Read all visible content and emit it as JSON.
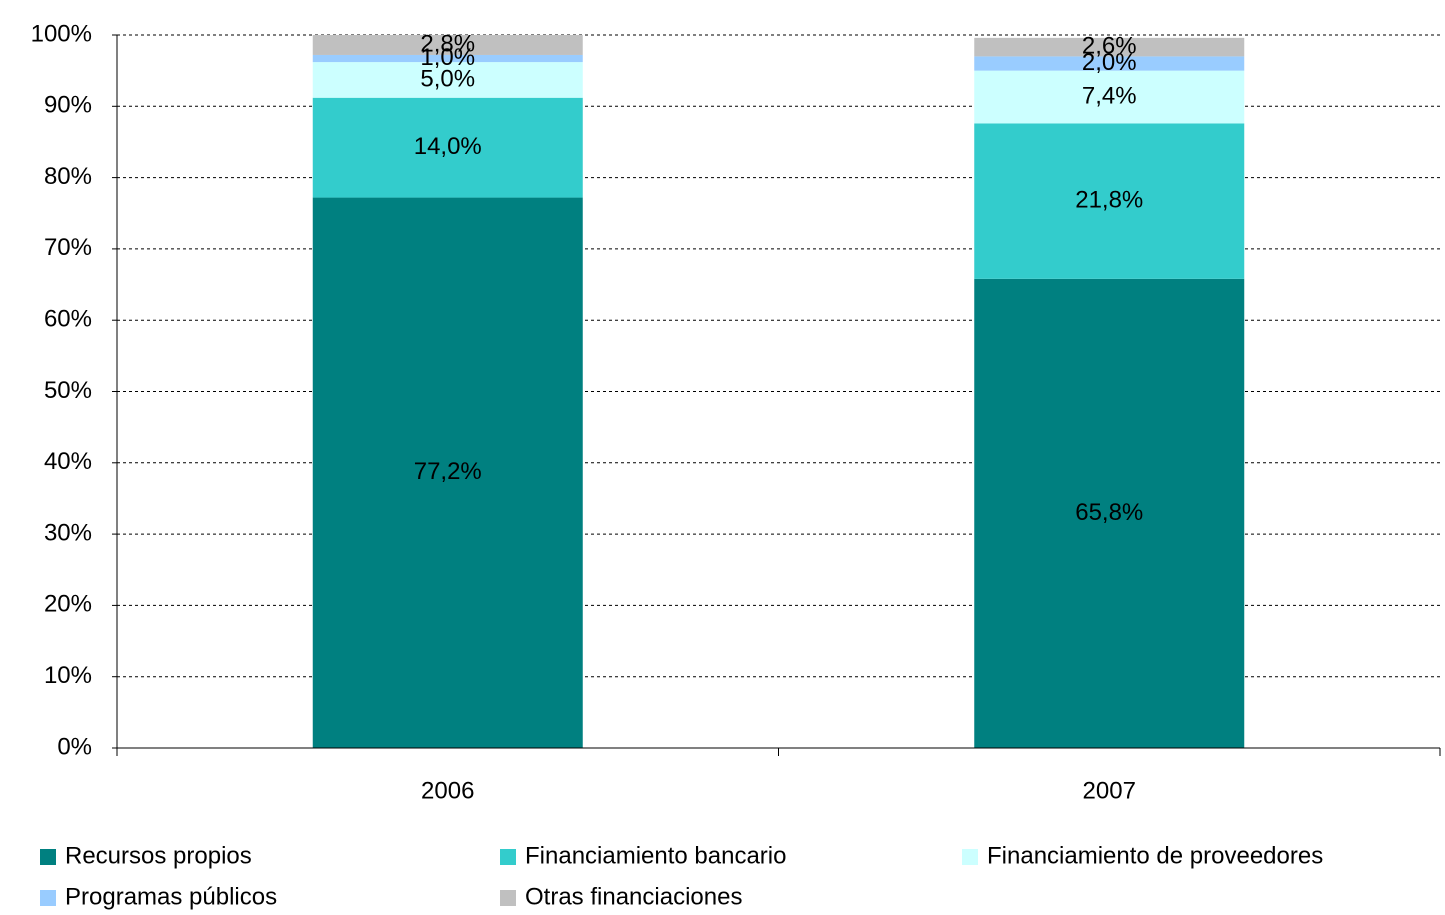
{
  "chart_data": {
    "type": "stacked-bar",
    "categories": [
      "2006",
      "2007"
    ],
    "series": [
      {
        "name": "Recursos propios",
        "color": "#008080",
        "values": [
          77.2,
          65.8
        ],
        "value_labels": [
          "77,2%",
          "65,8%"
        ]
      },
      {
        "name": "Financiamiento bancario",
        "color": "#33cccc",
        "values": [
          14.0,
          21.8
        ],
        "value_labels": [
          "14,0%",
          "21,8%"
        ]
      },
      {
        "name": "Financiamiento de proveedores",
        "color": "#ccffff",
        "values": [
          5.0,
          7.4
        ],
        "value_labels": [
          "5,0%",
          "7,4%"
        ]
      },
      {
        "name": "Programas públicos",
        "color": "#99ccff",
        "values": [
          1.0,
          2.0
        ],
        "value_labels": [
          "1,0%",
          "2,0%"
        ]
      },
      {
        "name": "Otras financiaciones",
        "color": "#c0c0c0",
        "values": [
          2.8,
          2.6
        ],
        "value_labels": [
          "2,8%",
          "2,6%"
        ]
      }
    ],
    "ylim": [
      0,
      100
    ],
    "yticks": [
      {
        "value": 0,
        "label": "0%"
      },
      {
        "value": 10,
        "label": "10%"
      },
      {
        "value": 20,
        "label": "20%"
      },
      {
        "value": 30,
        "label": "30%"
      },
      {
        "value": 40,
        "label": "40%"
      },
      {
        "value": 50,
        "label": "50%"
      },
      {
        "value": 60,
        "label": "60%"
      },
      {
        "value": 70,
        "label": "70%"
      },
      {
        "value": 80,
        "label": "80%"
      },
      {
        "value": 90,
        "label": "90%"
      },
      {
        "value": 100,
        "label": "100%"
      }
    ],
    "grid": true,
    "legend": "bottom"
  }
}
